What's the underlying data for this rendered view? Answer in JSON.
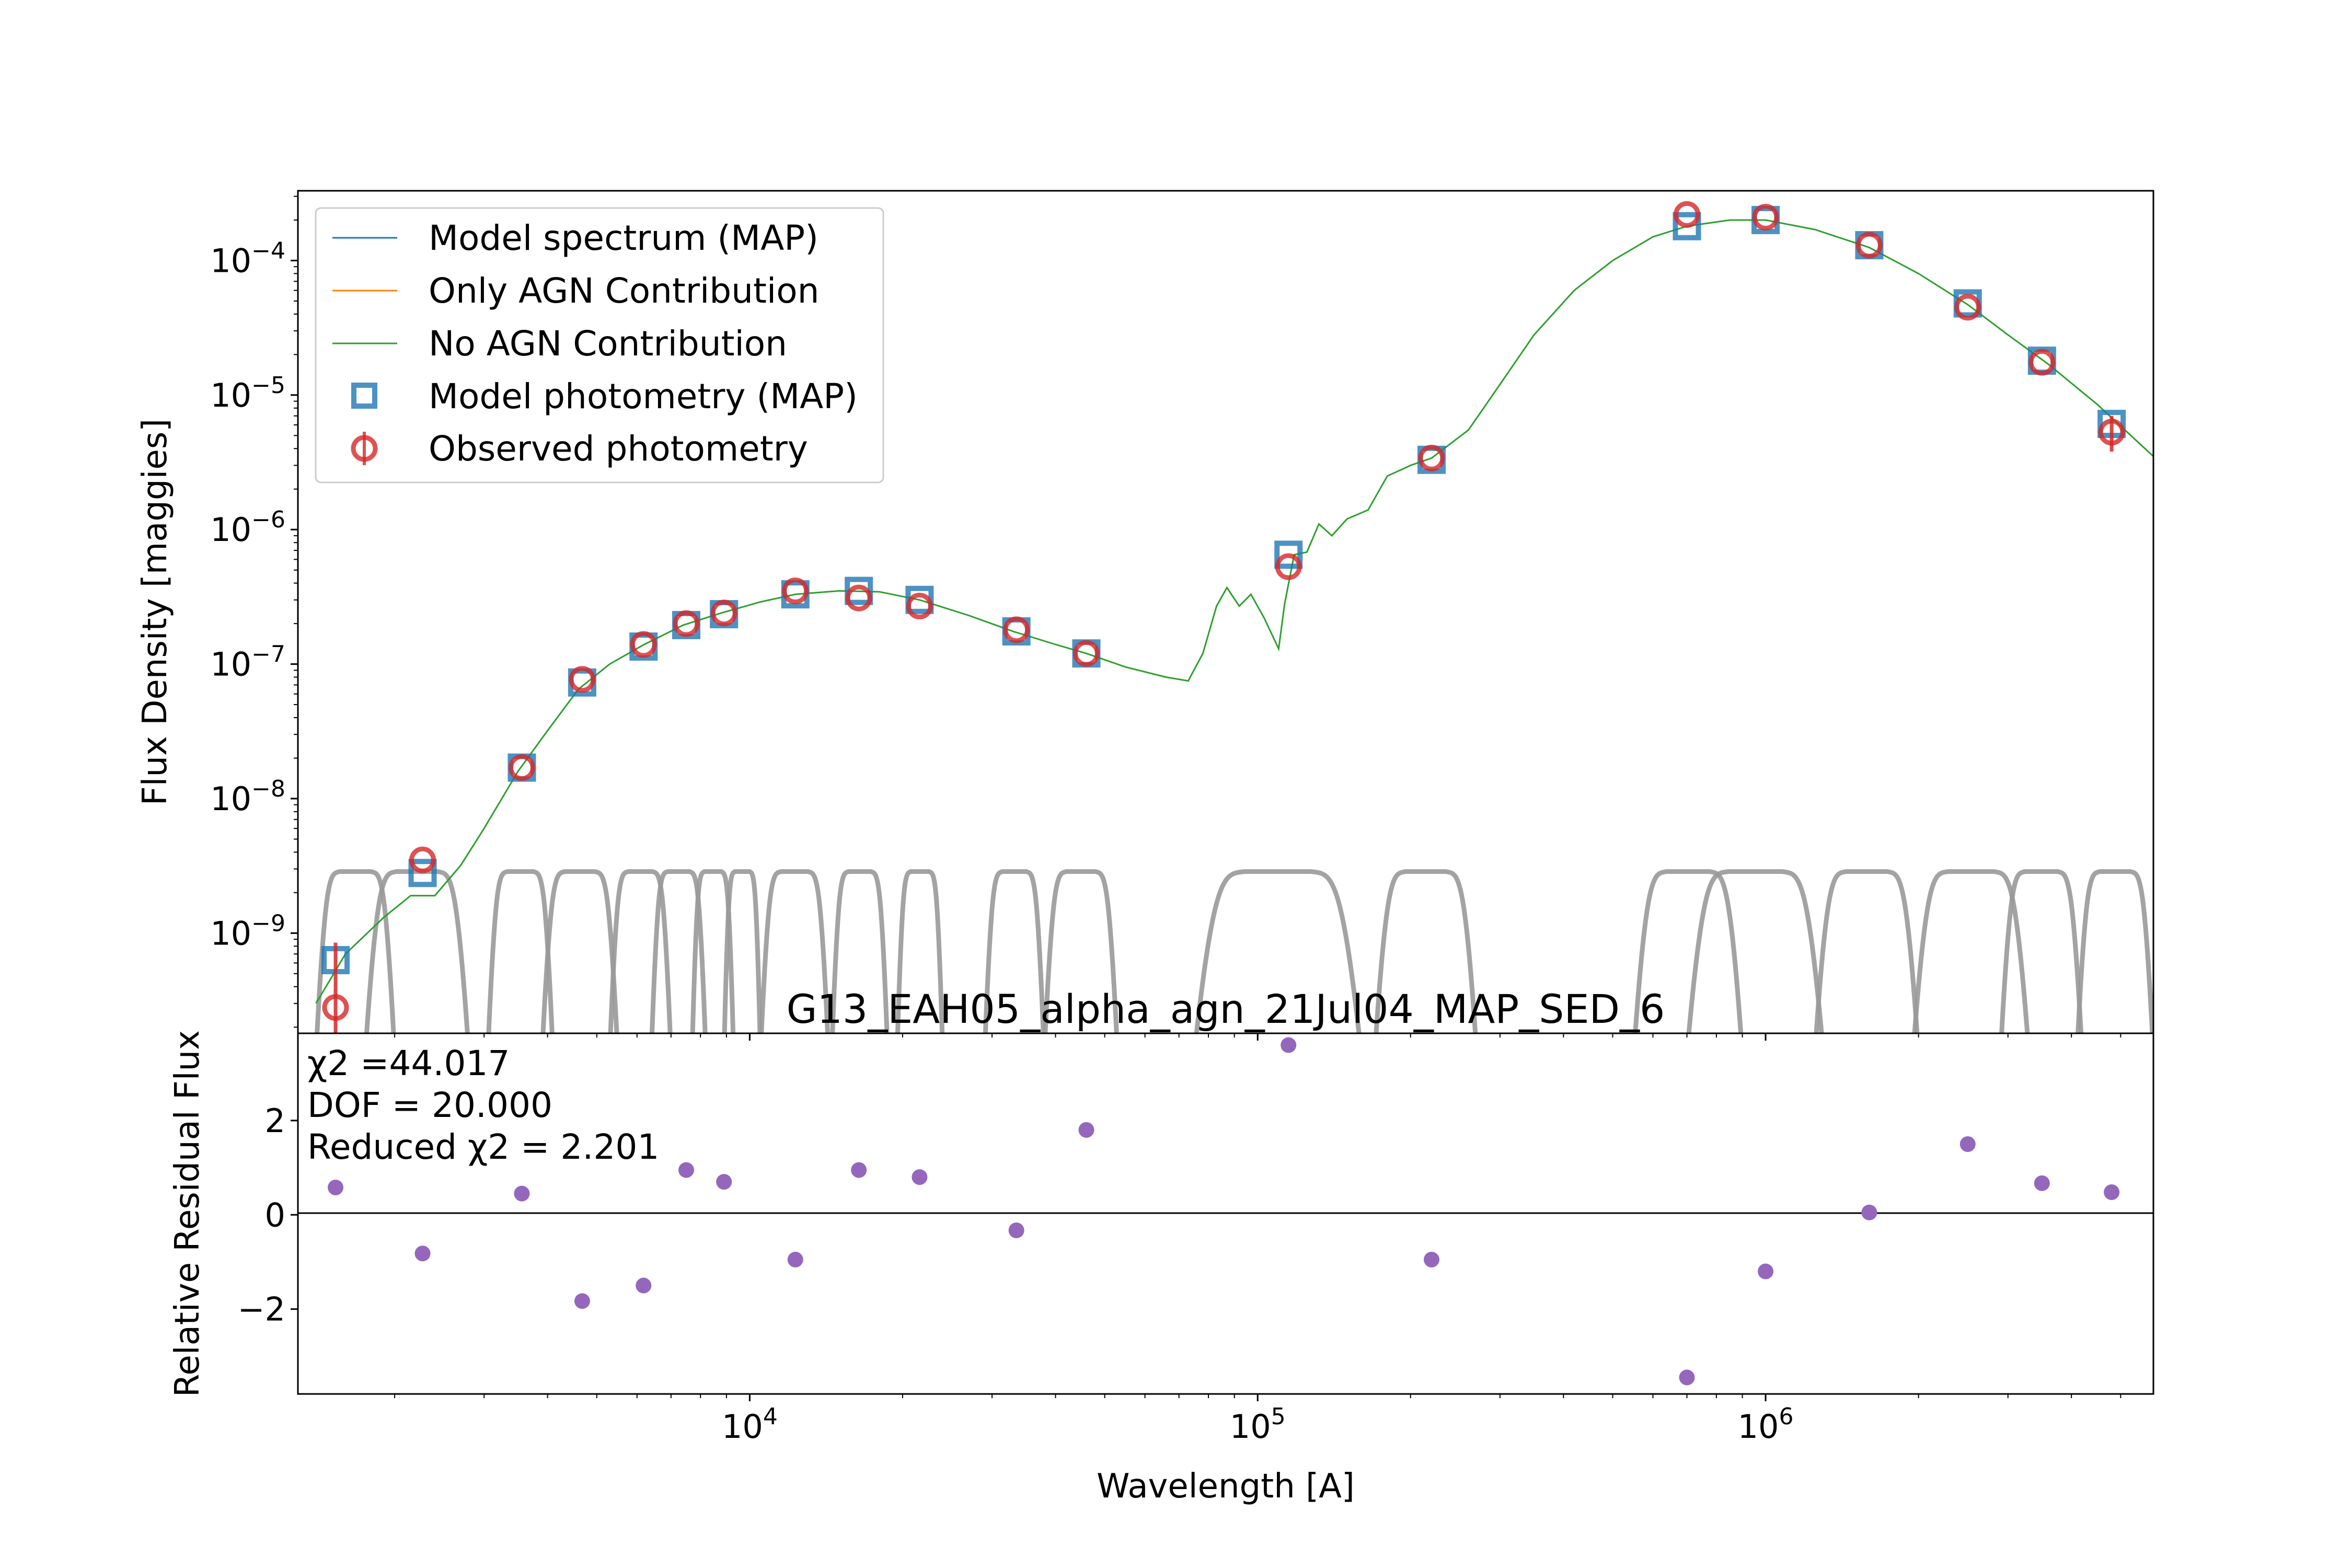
{
  "chart_data": [
    {
      "type": "scatter",
      "title": "G13_EAH05_alpha_agn_21Jul04_MAP_SED_6",
      "xlabel": "",
      "ylabel": "Flux Density [maggies]",
      "xscale": "log",
      "yscale": "log",
      "xlim": [
        1290,
        5800000
      ],
      "ylim": [
        1.8e-10,
        0.00033
      ],
      "y_tick_values": [
        1e-09,
        1e-08,
        1e-07,
        1e-06,
        1e-05,
        0.0001
      ],
      "y_tick_labels": [
        {
          "base": "10",
          "exp": "−9"
        },
        {
          "base": "10",
          "exp": "−8"
        },
        {
          "base": "10",
          "exp": "−7"
        },
        {
          "base": "10",
          "exp": "−6"
        },
        {
          "base": "10",
          "exp": "−5"
        },
        {
          "base": "10",
          "exp": "−4"
        }
      ],
      "legend": {
        "placement": "upper-left",
        "entries": [
          {
            "label": "Model spectrum (MAP)",
            "color": "#1f77b4",
            "marker": "line"
          },
          {
            "label": "Only AGN Contribution",
            "color": "#ff7f0e",
            "marker": "line"
          },
          {
            "label": "No AGN Contribution",
            "color": "#2ca02c",
            "marker": "line"
          },
          {
            "label": "Model photometry (MAP)",
            "color": "#1f77b4",
            "marker": "square"
          },
          {
            "label": "Observed photometry",
            "color": "#d62728",
            "marker": "circle-errorbar"
          }
        ]
      },
      "series": [
        {
          "name": "No AGN Contribution",
          "color": "#2ca02c",
          "kind": "line",
          "points": [
            [
              1400,
              3e-10
            ],
            [
              1600,
              7e-10
            ],
            [
              1900,
              1.3e-09
            ],
            [
              2150,
              1.9e-09
            ],
            [
              2400,
              1.9e-09
            ],
            [
              2700,
              3.2e-09
            ],
            [
              3000,
              6e-09
            ],
            [
              3500,
              1.6e-08
            ],
            [
              4000,
              3.2e-08
            ],
            [
              4600,
              6.5e-08
            ],
            [
              5300,
              1e-07
            ],
            [
              6200,
              1.4e-07
            ],
            [
              7400,
              1.95e-07
            ],
            [
              8800,
              2.4e-07
            ],
            [
              10500,
              2.9e-07
            ],
            [
              12300,
              3.3e-07
            ],
            [
              15000,
              3.5e-07
            ],
            [
              18000,
              3.45e-07
            ],
            [
              21600,
              3e-07
            ],
            [
              27000,
              2.3e-07
            ],
            [
              33000,
              1.75e-07
            ],
            [
              40000,
              1.4e-07
            ],
            [
              46000,
              1.2e-07
            ],
            [
              55000,
              9.5e-08
            ],
            [
              66000,
              8e-08
            ],
            [
              73000,
              7.5e-08
            ],
            [
              78000,
              1.2e-07
            ],
            [
              83000,
              2.7e-07
            ],
            [
              87000,
              3.7e-07
            ],
            [
              92000,
              2.7e-07
            ],
            [
              97000,
              3.3e-07
            ],
            [
              103000,
              2.2e-07
            ],
            [
              110000,
              1.3e-07
            ],
            [
              113000,
              2.8e-07
            ],
            [
              118000,
              6.5e-07
            ],
            [
              125000,
              6.8e-07
            ],
            [
              132000,
              1.1e-06
            ],
            [
              140000,
              9e-07
            ],
            [
              150000,
              1.2e-06
            ],
            [
              165000,
              1.4e-06
            ],
            [
              180000,
              2.5e-06
            ],
            [
              200000,
              3e-06
            ],
            [
              220000,
              3.4e-06
            ],
            [
              260000,
              5.5e-06
            ],
            [
              300000,
              1.2e-05
            ],
            [
              350000,
              2.8e-05
            ],
            [
              420000,
              6e-05
            ],
            [
              500000,
              0.0001
            ],
            [
              600000,
              0.00015
            ],
            [
              700000,
              0.00018
            ],
            [
              850000,
              0.0002
            ],
            [
              1000000,
              0.0002
            ],
            [
              1250000,
              0.00017
            ],
            [
              1600000,
              0.000125
            ],
            [
              2000000,
              8e-05
            ],
            [
              2500000,
              4.7e-05
            ],
            [
              3000000,
              2.8e-05
            ],
            [
              3600000,
              1.7e-05
            ],
            [
              4500000,
              8.5e-06
            ],
            [
              5800000,
              3.5e-06
            ]
          ]
        },
        {
          "name": "Model photometry (MAP)",
          "color": "#1f77b4",
          "kind": "square",
          "points": [
            [
              1530,
              6.3e-10
            ],
            [
              2270,
              2.8e-09
            ],
            [
              3560,
              1.7e-08
            ],
            [
              4680,
              7.3e-08
            ],
            [
              6180,
              1.35e-07
            ],
            [
              7500,
              1.95e-07
            ],
            [
              8900,
              2.35e-07
            ],
            [
              12300,
              3.3e-07
            ],
            [
              16400,
              3.5e-07
            ],
            [
              21600,
              3e-07
            ],
            [
              33500,
              1.75e-07
            ],
            [
              46000,
              1.2e-07
            ],
            [
              115000,
              6.5e-07
            ],
            [
              220000,
              3.3e-06
            ],
            [
              700000,
              0.00018
            ],
            [
              1000000,
              0.0002
            ],
            [
              1600000,
              0.00013
            ],
            [
              2500000,
              4.8e-05
            ],
            [
              3500000,
              1.8e-05
            ],
            [
              4800000,
              6.1e-06
            ]
          ]
        },
        {
          "name": "Observed photometry",
          "color": "#d62728",
          "kind": "circle-errorbar",
          "points": [
            [
              1530,
              2.8e-10
            ],
            [
              2270,
              3.5e-09
            ],
            [
              3560,
              1.7e-08
            ],
            [
              4680,
              7.7e-08
            ],
            [
              6180,
              1.4e-07
            ],
            [
              7500,
              2e-07
            ],
            [
              8900,
              2.4e-07
            ],
            [
              12300,
              3.5e-07
            ],
            [
              16400,
              3.1e-07
            ],
            [
              21600,
              2.7e-07
            ],
            [
              33500,
              1.8e-07
            ],
            [
              46000,
              1.2e-07
            ],
            [
              115000,
              5.3e-07
            ],
            [
              220000,
              3.4e-06
            ],
            [
              700000,
              0.00022
            ],
            [
              1000000,
              0.00021
            ],
            [
              1600000,
              0.00013
            ],
            [
              2500000,
              4.5e-05
            ],
            [
              3500000,
              1.75e-05
            ],
            [
              4800000,
              5.3e-06
            ]
          ],
          "errorbars_vertical": [
            [
              1530,
              1.8e-10,
              8.5e-10
            ],
            [
              4800000,
              3.8e-06,
              7e-06
            ]
          ]
        }
      ],
      "filter_curves": {
        "color": "#999999",
        "relative_scale_peak": 3e-09,
        "passbands": [
          [
            1400,
            2000
          ],
          [
            1750,
            2800
          ],
          [
            3050,
            4100
          ],
          [
            3900,
            5500
          ],
          [
            5300,
            7000
          ],
          [
            6400,
            8200
          ],
          [
            7700,
            9300
          ],
          [
            8900,
            10500
          ],
          [
            10500,
            14300
          ],
          [
            14500,
            18700
          ],
          [
            19500,
            24000
          ],
          [
            29000,
            38000
          ],
          [
            38000,
            53000
          ],
          [
            75000,
            160000
          ],
          [
            170000,
            270000
          ],
          [
            550000,
            900000
          ],
          [
            700000,
            1300000
          ],
          [
            1250000,
            2000000
          ],
          [
            1950000,
            3300000
          ],
          [
            2900000,
            4200000
          ],
          [
            4100000,
            5800000
          ]
        ]
      }
    },
    {
      "type": "scatter",
      "xlabel": "Wavelength [A]",
      "ylabel": "Relative Residual Flux",
      "xscale": "log",
      "xlim": [
        1290,
        5800000
      ],
      "ylim": [
        -3.8,
        3.85
      ],
      "x_tick_values": [
        10000,
        100000,
        1000000
      ],
      "x_tick_labels": [
        {
          "base": "10",
          "exp": "4"
        },
        {
          "base": "10",
          "exp": "5"
        },
        {
          "base": "10",
          "exp": "6"
        }
      ],
      "y_tick_values": [
        -2,
        0,
        2
      ],
      "y_tick_labels": [
        "−2",
        "0",
        "2"
      ],
      "zero_line": true,
      "color": "#9467bd",
      "points": [
        [
          1530,
          0.58
        ],
        [
          2270,
          -0.82
        ],
        [
          3560,
          0.45
        ],
        [
          4680,
          -1.83
        ],
        [
          6180,
          -1.5
        ],
        [
          7500,
          0.95
        ],
        [
          8900,
          0.7
        ],
        [
          12300,
          -0.95
        ],
        [
          16400,
          0.95
        ],
        [
          21600,
          0.8
        ],
        [
          33500,
          -0.33
        ],
        [
          46000,
          1.8
        ],
        [
          115000,
          3.6
        ],
        [
          220000,
          -0.95
        ],
        [
          700000,
          -3.45
        ],
        [
          1000000,
          -1.2
        ],
        [
          1600000,
          0.05
        ],
        [
          2500000,
          1.5
        ],
        [
          3500000,
          0.67
        ],
        [
          4800000,
          0.48
        ]
      ],
      "stats": [
        "χ2 =44.017",
        "DOF = 20.000",
        "Reduced χ2 = 2.201"
      ]
    }
  ]
}
